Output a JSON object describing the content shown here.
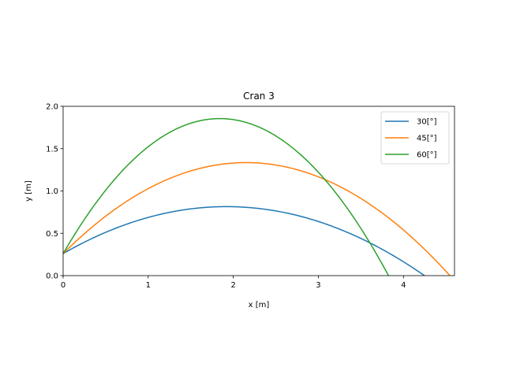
{
  "chart_data": {
    "type": "line",
    "title": "Cran 3",
    "xlabel": "x [m]",
    "ylabel": "y [m]",
    "xlim": [
      0,
      4.6
    ],
    "ylim": [
      0,
      2.0
    ],
    "xticks": [
      0,
      1,
      2,
      3,
      4
    ],
    "yticks": [
      0.0,
      0.5,
      1.0,
      1.5,
      2.0
    ],
    "xtick_labels": [
      "0",
      "1",
      "2",
      "3",
      "4"
    ],
    "ytick_labels": [
      "0.0",
      "0.5",
      "1.0",
      "1.5",
      "2.0"
    ],
    "grid": false,
    "legend_position": "top-right",
    "series": [
      {
        "name": "30[°]",
        "color": "#1f77b4",
        "y0": 0.26,
        "apex_x": 1.92,
        "apex_y": 0.815,
        "x_end": 4.25
      },
      {
        "name": "45[°]",
        "color": "#ff7f0e",
        "y0": 0.26,
        "apex_x": 2.15,
        "apex_y": 1.335,
        "x_end": 4.55
      },
      {
        "name": "60[°]",
        "color": "#2ca02c",
        "y0": 0.26,
        "apex_x": 1.84,
        "apex_y": 1.855,
        "x_end": 3.83
      }
    ]
  }
}
